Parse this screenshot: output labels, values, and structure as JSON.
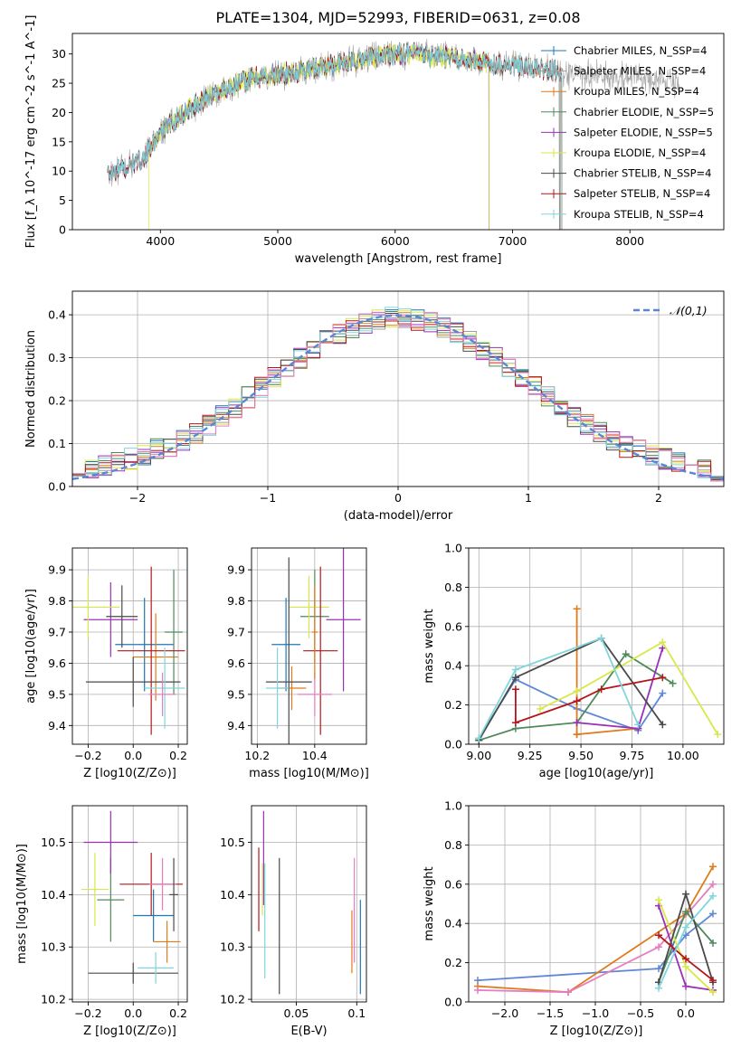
{
  "title": "PLATE=1304, MJD=52993, FIBERID=0631, z=0.08",
  "colors": {
    "Chabrier MILES": "#1f77b4",
    "Salpeter MILES": "#9e9e9e",
    "Kroupa MILES": "#e07b1a",
    "Chabrier ELODIE": "#4f8a5b",
    "Salpeter ELODIE": "#9b30b8",
    "Kroupa ELODIE": "#d8e84a",
    "Chabrier STELIB": "#4a4a4a",
    "Salpeter STELIB": "#b3161a",
    "Kroupa STELIB": "#7fd6dc",
    "extra_blue": "#5f87d6",
    "extra_pink": "#e77cc0",
    "normal": "#5a86d6"
  },
  "chart_data": [
    {
      "id": "spectrum",
      "type": "line",
      "xlabel": "wavelength [Angstrom, rest frame]",
      "ylabel": "Flux [f_λ 10^-17 erg cm^-2 s^-1 A^-1]",
      "xlim": [
        3250,
        8800
      ],
      "ylim": [
        0,
        33.5
      ],
      "xticks": [
        4000,
        5000,
        6000,
        7000,
        8000
      ],
      "yticks": [
        0,
        5,
        10,
        15,
        20,
        25,
        30
      ],
      "grid": false,
      "legend": "right",
      "legend_entries": [
        {
          "label": "Chabrier MILES, N_SSP=4",
          "series": "Chabrier MILES"
        },
        {
          "label": "Salpeter MILES, N_SSP=4",
          "series": "Salpeter MILES"
        },
        {
          "label": "Kroupa MILES, N_SSP=4",
          "series": "Kroupa MILES"
        },
        {
          "label": "Chabrier ELODIE, N_SSP=5",
          "series": "Chabrier ELODIE"
        },
        {
          "label": "Salpeter ELODIE, N_SSP=5",
          "series": "Salpeter ELODIE"
        },
        {
          "label": "Kroupa ELODIE, N_SSP=4",
          "series": "Kroupa ELODIE"
        },
        {
          "label": "Chabrier STELIB, N_SSP=4",
          "series": "Chabrier STELIB"
        },
        {
          "label": "Salpeter STELIB, N_SSP=4",
          "series": "Salpeter STELIB"
        },
        {
          "label": "Kroupa STELIB, N_SSP=4",
          "series": "Kroupa STELIB"
        }
      ],
      "continuum": {
        "x": [
          3550,
          3700,
          3850,
          3950,
          4050,
          4200,
          4400,
          4600,
          4800,
          5000,
          5200,
          5400,
          5600,
          5800,
          6000,
          6200,
          6400,
          6600,
          6800,
          7000,
          7200,
          7400,
          7600,
          7800,
          8000,
          8200,
          8400
        ],
        "y": [
          9.5,
          10.5,
          12.0,
          15.0,
          17.5,
          20.0,
          22.5,
          24.5,
          26.0,
          26.5,
          27.0,
          28.0,
          28.5,
          29.5,
          30.0,
          30.0,
          29.5,
          29.0,
          28.5,
          28.0,
          27.5,
          27.0,
          26.5,
          26.0,
          26.0,
          25.5,
          25.0
        ]
      },
      "series": [
        {
          "name": "Chabrier MILES",
          "x": [
            3550,
            7400
          ]
        },
        {
          "name": "Salpeter MILES",
          "x": [
            3550,
            8420
          ]
        },
        {
          "name": "Kroupa MILES",
          "x": [
            3550,
            7410
          ]
        },
        {
          "name": "Chabrier ELODIE",
          "x": [
            3550,
            6800
          ]
        },
        {
          "name": "Salpeter ELODIE",
          "x": [
            3550,
            6800
          ]
        },
        {
          "name": "Kroupa ELODIE",
          "x": [
            3900,
            6800
          ]
        },
        {
          "name": "Chabrier STELIB",
          "x": [
            3550,
            7420
          ]
        },
        {
          "name": "Salpeter STELIB",
          "x": [
            3550,
            7420
          ]
        },
        {
          "name": "Kroupa STELIB",
          "x": [
            3550,
            7420
          ]
        }
      ]
    },
    {
      "id": "residuals",
      "type": "line",
      "xlabel": "(data-model)/error",
      "ylabel": "Normed distribution",
      "xlim": [
        -2.5,
        2.5
      ],
      "ylim": [
        0,
        0.455
      ],
      "xticks": [
        -2,
        -1,
        0,
        1,
        2
      ],
      "yticks": [
        0.0,
        0.1,
        0.2,
        0.3,
        0.4
      ],
      "grid": true,
      "legend": "top-right",
      "legend_label": "𝒩(0,1)",
      "bin_width": 0.1,
      "normal": {
        "mean": 0,
        "sigma": 1
      }
    },
    {
      "id": "age_vs_Z",
      "type": "scatter",
      "xlabel": "Z [log10(Z/Z⊙)]",
      "ylabel": "age  [log10(age/yr)]",
      "xlim": [
        -0.27,
        0.24
      ],
      "ylim": [
        9.34,
        9.97
      ],
      "xticks": [
        -0.2,
        0.0,
        0.2
      ],
      "yticks": [
        9.4,
        9.5,
        9.6,
        9.7,
        9.8,
        9.9
      ],
      "grid": true,
      "points": [
        {
          "series": "Chabrier MILES",
          "x": 0.05,
          "y": 9.66,
          "xerr": 0.13,
          "yerr": 0.15
        },
        {
          "series": "Kroupa MILES",
          "x": 0.1,
          "y": 9.62,
          "xerr": 0.1,
          "yerr": 0.14
        },
        {
          "series": "Chabrier ELODIE",
          "x": 0.18,
          "y": 9.7,
          "xerr": 0.04,
          "yerr": 0.2
        },
        {
          "series": "Salpeter ELODIE",
          "x": -0.1,
          "y": 9.74,
          "xerr": 0.12,
          "yerr": 0.12
        },
        {
          "series": "Kroupa ELODIE",
          "x": -0.2,
          "y": 9.78,
          "xerr": 0.14,
          "yerr": 0.1
        },
        {
          "series": "Chabrier STELIB",
          "x": 0.0,
          "y": 9.54,
          "xerr": 0.21,
          "yerr": 0.08
        },
        {
          "series": "Salpeter STELIB",
          "x": 0.08,
          "y": 9.64,
          "xerr": 0.15,
          "yerr": 0.27
        },
        {
          "series": "Kroupa STELIB",
          "x": 0.14,
          "y": 9.52,
          "xerr": 0.09,
          "yerr": 0.13
        },
        {
          "series": "Chabrier STELIB",
          "x": -0.05,
          "y": 9.75,
          "xerr": 0.07,
          "yerr": 0.1
        },
        {
          "series": "extra_pink",
          "x": 0.13,
          "y": 9.5,
          "xerr": 0.06,
          "yerr": 0.07
        }
      ]
    },
    {
      "id": "age_vs_mass",
      "type": "scatter",
      "xlabel": "mass [log10(M/M⊙)]",
      "ylabel": "",
      "xlim": [
        10.18,
        10.58
      ],
      "ylim": [
        9.34,
        9.97
      ],
      "xticks": [
        10.2,
        10.4
      ],
      "yticks": [
        9.4,
        9.5,
        9.6,
        9.7,
        9.8,
        9.9
      ],
      "grid": true,
      "points": [
        {
          "series": "Chabrier MILES",
          "x": 10.3,
          "y": 9.66,
          "xerr": 0.05,
          "yerr": 0.15
        },
        {
          "series": "Kroupa MILES",
          "x": 10.32,
          "y": 9.52,
          "xerr": 0.05,
          "yerr": 0.07
        },
        {
          "series": "Chabrier ELODIE",
          "x": 10.4,
          "y": 9.75,
          "xerr": 0.05,
          "yerr": 0.15
        },
        {
          "series": "Salpeter ELODIE",
          "x": 10.5,
          "y": 9.74,
          "xerr": 0.06,
          "yerr": 0.23
        },
        {
          "series": "Kroupa ELODIE",
          "x": 10.38,
          "y": 9.78,
          "xerr": 0.07,
          "yerr": 0.1
        },
        {
          "series": "Chabrier STELIB",
          "x": 10.31,
          "y": 9.54,
          "xerr": 0.08,
          "yerr": 0.4
        },
        {
          "series": "Salpeter STELIB",
          "x": 10.42,
          "y": 9.64,
          "xerr": 0.06,
          "yerr": 0.27
        },
        {
          "series": "Kroupa STELIB",
          "x": 10.27,
          "y": 9.52,
          "xerr": 0.04,
          "yerr": 0.13
        },
        {
          "series": "extra_pink",
          "x": 10.4,
          "y": 9.5,
          "xerr": 0.06,
          "yerr": 0.07
        },
        {
          "series": "Kroupa MILES",
          "x": 10.4,
          "y": 9.7,
          "xerr": 0.01,
          "yerr": 0.15
        }
      ]
    },
    {
      "id": "weight_vs_age",
      "type": "line",
      "xlabel": "age  [log10(age/yr)]",
      "ylabel": "mass weight",
      "xlim": [
        8.95,
        10.2
      ],
      "ylim": [
        0.0,
        1.0
      ],
      "xticks": [
        9.0,
        9.25,
        9.5,
        9.75,
        10.0
      ],
      "yticks": [
        0.0,
        0.2,
        0.4,
        0.6,
        0.8,
        1.0
      ],
      "grid": true,
      "series": [
        {
          "name": "extra_blue",
          "x": [
            9.0,
            9.18,
            9.48,
            9.78,
            9.9
          ],
          "y": [
            0.03,
            0.33,
            0.18,
            0.07,
            0.26
          ]
        },
        {
          "name": "Kroupa MILES",
          "x": [
            9.48,
            9.48,
            9.48,
            9.78
          ],
          "y": [
            0.69,
            0.05,
            0.05,
            0.08
          ]
        },
        {
          "name": "Chabrier ELODIE",
          "x": [
            9.0,
            9.18,
            9.48,
            9.72,
            9.95
          ],
          "y": [
            0.02,
            0.08,
            0.11,
            0.46,
            0.31
          ]
        },
        {
          "name": "Salpeter ELODIE",
          "x": [
            9.48,
            9.78,
            9.9
          ],
          "y": [
            0.11,
            0.08,
            0.49
          ]
        },
        {
          "name": "Kroupa ELODIE",
          "x": [
            9.3,
            9.48,
            9.9,
            10.17
          ],
          "y": [
            0.18,
            0.27,
            0.52,
            0.05
          ]
        },
        {
          "name": "Chabrier STELIB",
          "x": [
            9.0,
            9.18,
            9.6,
            9.9
          ],
          "y": [
            0.02,
            0.34,
            0.54,
            0.1
          ]
        },
        {
          "name": "Salpeter STELIB",
          "x": [
            9.18,
            9.18,
            9.48,
            9.6,
            9.9
          ],
          "y": [
            0.28,
            0.11,
            0.22,
            0.28,
            0.34
          ]
        },
        {
          "name": "Kroupa STELIB",
          "x": [
            9.0,
            9.18,
            9.6,
            9.78
          ],
          "y": [
            0.03,
            0.38,
            0.54,
            0.1
          ]
        }
      ]
    },
    {
      "id": "mass_vs_Z",
      "type": "scatter",
      "xlabel": "Z [log10(Z/Z⊙)]",
      "ylabel": "mass [log10(M/M⊙)]",
      "xlim": [
        -0.27,
        0.24
      ],
      "ylim": [
        10.195,
        10.57
      ],
      "xticks": [
        -0.2,
        0.0,
        0.2
      ],
      "yticks": [
        10.2,
        10.3,
        10.4,
        10.5
      ],
      "grid": true,
      "points": [
        {
          "series": "Chabrier MILES",
          "x": 0.09,
          "y": 10.36,
          "xerr": 0.09,
          "yerr": 0.05
        },
        {
          "series": "Kroupa MILES",
          "x": 0.15,
          "y": 10.31,
          "xerr": 0.06,
          "yerr": 0.04
        },
        {
          "series": "Chabrier ELODIE",
          "x": -0.1,
          "y": 10.39,
          "xerr": 0.06,
          "yerr": 0.08
        },
        {
          "series": "Salpeter ELODIE",
          "x": -0.1,
          "y": 10.5,
          "xerr": 0.12,
          "yerr": 0.06
        },
        {
          "series": "Kroupa ELODIE",
          "x": -0.17,
          "y": 10.41,
          "xerr": 0.06,
          "yerr": 0.07
        },
        {
          "series": "Chabrier STELIB",
          "x": 0.0,
          "y": 10.25,
          "xerr": 0.2,
          "yerr": 0.02
        },
        {
          "series": "Salpeter STELIB",
          "x": 0.08,
          "y": 10.42,
          "xerr": 0.14,
          "yerr": 0.06
        },
        {
          "series": "Kroupa STELIB",
          "x": 0.1,
          "y": 10.26,
          "xerr": 0.08,
          "yerr": 0.03
        },
        {
          "series": "extra_pink",
          "x": 0.13,
          "y": 10.42,
          "xerr": 0.06,
          "yerr": 0.05
        },
        {
          "series": "Chabrier STELIB",
          "x": 0.18,
          "y": 10.4,
          "xerr": 0.02,
          "yerr": 0.07
        }
      ]
    },
    {
      "id": "mass_vs_ebv",
      "type": "scatter",
      "xlabel": "E(B-V)",
      "ylabel": "",
      "xlim": [
        0.013,
        0.108
      ],
      "ylim": [
        10.195,
        10.57
      ],
      "xticks": [
        0.05,
        0.1
      ],
      "yticks": [
        10.2,
        10.3,
        10.4,
        10.5
      ],
      "grid": true,
      "points": [
        {
          "series": "Salpeter ELODIE",
          "x": 0.023,
          "y": 10.47,
          "xerr": 0,
          "yerr": 0.09
        },
        {
          "series": "Kroupa STELIB",
          "x": 0.024,
          "y": 10.35,
          "xerr": 0,
          "yerr": 0.11
        },
        {
          "series": "Salpeter STELIB",
          "x": 0.019,
          "y": 10.41,
          "xerr": 0,
          "yerr": 0.08
        },
        {
          "series": "Kroupa ELODIE",
          "x": 0.022,
          "y": 10.41,
          "xerr": 0,
          "yerr": 0.05
        },
        {
          "series": "Chabrier STELIB",
          "x": 0.036,
          "y": 10.34,
          "xerr": 0,
          "yerr": 0.13
        },
        {
          "series": "extra_pink",
          "x": 0.098,
          "y": 10.37,
          "xerr": 0,
          "yerr": 0.1
        },
        {
          "series": "Kroupa MILES",
          "x": 0.096,
          "y": 10.31,
          "xerr": 0,
          "yerr": 0.06
        },
        {
          "series": "Chabrier MILES",
          "x": 0.103,
          "y": 10.3,
          "xerr": 0,
          "yerr": 0.09
        }
      ]
    },
    {
      "id": "weight_vs_Z",
      "type": "line",
      "xlabel": "Z [log10(Z/Z⊙)]",
      "ylabel": "mass weight",
      "xlim": [
        -2.4,
        0.42
      ],
      "ylim": [
        0.0,
        1.0
      ],
      "xticks": [
        -2.0,
        -1.5,
        -1.0,
        -0.5,
        0.0
      ],
      "yticks": [
        0.0,
        0.2,
        0.4,
        0.6,
        0.8,
        1.0
      ],
      "grid": true,
      "series": [
        {
          "name": "extra_blue",
          "x": [
            -2.3,
            -0.3,
            0.0,
            0.3
          ],
          "y": [
            0.11,
            0.17,
            0.34,
            0.45
          ]
        },
        {
          "name": "Kroupa MILES",
          "x": [
            -2.3,
            -1.3,
            0.0,
            0.3
          ],
          "y": [
            0.08,
            0.05,
            0.45,
            0.69
          ]
        },
        {
          "name": "extra_pink",
          "x": [
            -2.3,
            -1.3,
            -0.3,
            0.3
          ],
          "y": [
            0.06,
            0.05,
            0.28,
            0.6
          ]
        },
        {
          "name": "Chabrier ELODIE",
          "x": [
            -0.3,
            0.0,
            0.3
          ],
          "y": [
            0.1,
            0.46,
            0.3
          ]
        },
        {
          "name": "Salpeter ELODIE",
          "x": [
            -0.3,
            0.0,
            0.3
          ],
          "y": [
            0.49,
            0.08,
            0.06
          ]
        },
        {
          "name": "Kroupa ELODIE",
          "x": [
            -0.3,
            0.0,
            0.3
          ],
          "y": [
            0.52,
            0.18,
            0.05
          ]
        },
        {
          "name": "Chabrier STELIB",
          "x": [
            -0.3,
            0.0,
            0.3
          ],
          "y": [
            0.1,
            0.55,
            0.1
          ]
        },
        {
          "name": "Salpeter STELIB",
          "x": [
            -0.3,
            0.0,
            0.3
          ],
          "y": [
            0.34,
            0.22,
            0.11
          ]
        },
        {
          "name": "Kroupa STELIB",
          "x": [
            -0.3,
            0.0,
            0.3
          ],
          "y": [
            0.07,
            0.38,
            0.54
          ]
        }
      ]
    }
  ]
}
